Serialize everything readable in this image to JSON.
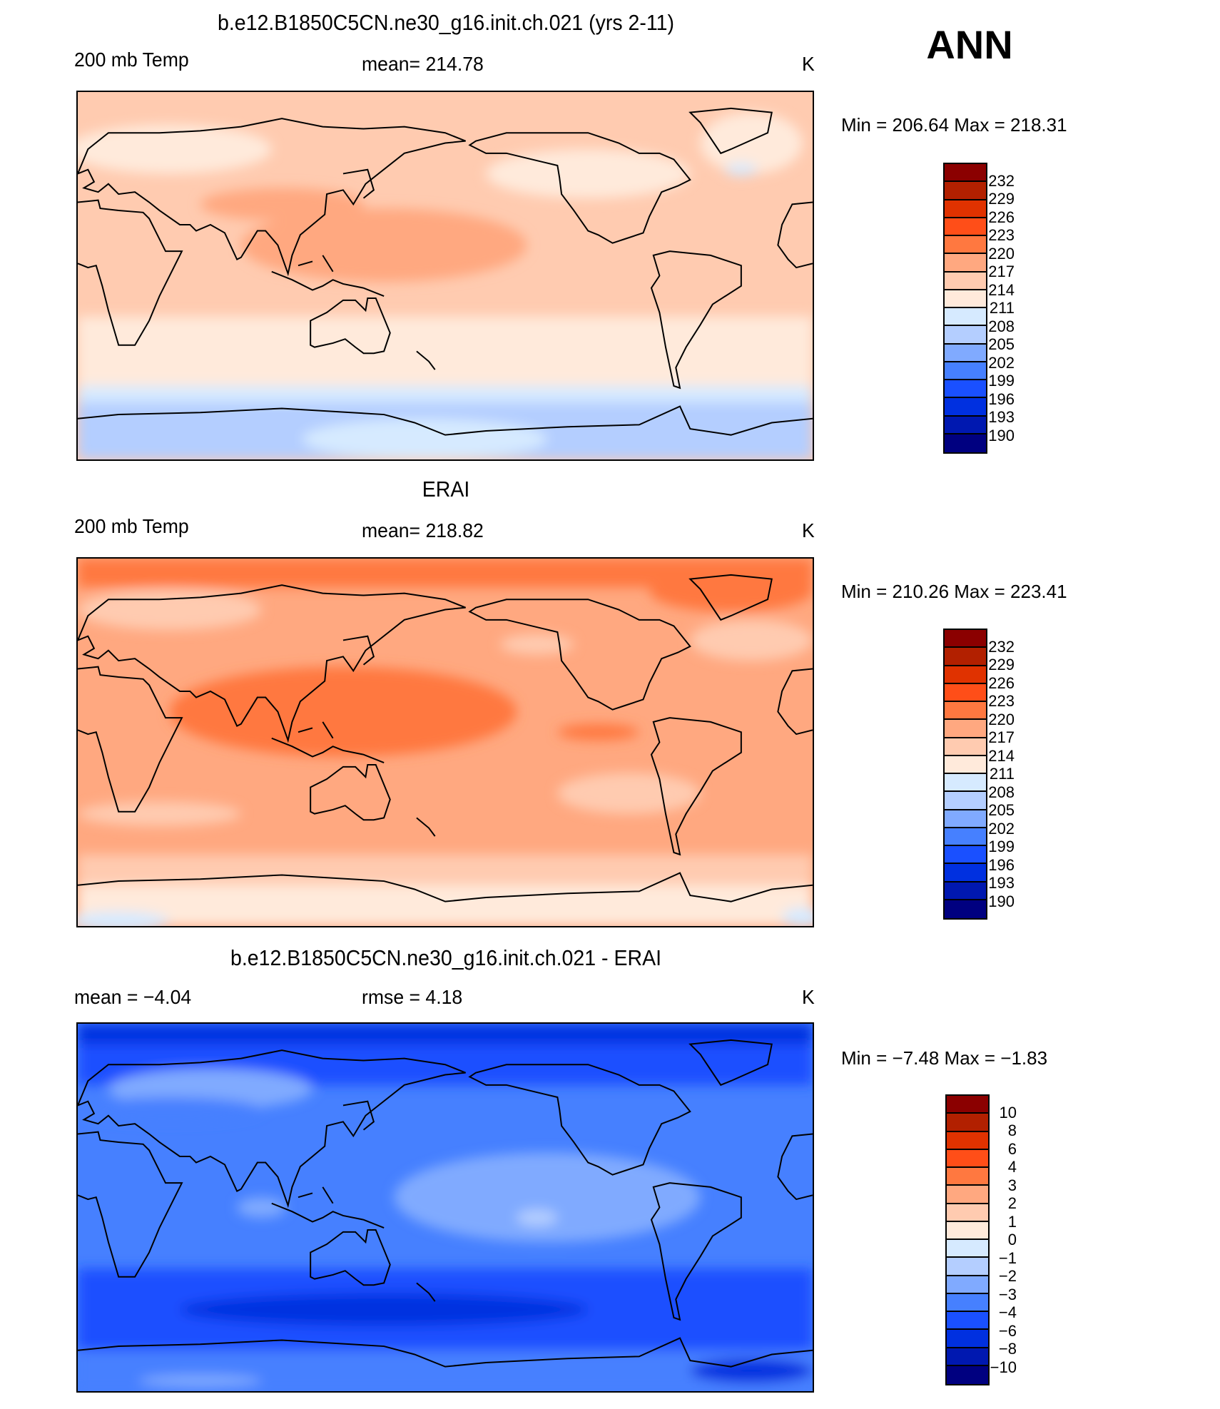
{
  "header": {
    "season": "ANN"
  },
  "colors": [
    "#8b0000",
    "#b22000",
    "#e03200",
    "#ff4e18",
    "#ff7840",
    "#ffa880",
    "#ffcbb0",
    "#ffeadb",
    "#d6eaff",
    "#b4ceff",
    "#80aaff",
    "#4680ff",
    "#1a50ff",
    "#0030e0",
    "#0018b0",
    "#000080"
  ],
  "panels": [
    {
      "title": "b.e12.B1850C5CN.ne30_g16.init.ch.021 (yrs 2-11)",
      "left": "200 mb Temp",
      "center": "mean=  214.78",
      "units": "K",
      "minmax": "Min  =  206.64  Max  =  218.31",
      "levels": [
        "232",
        "229",
        "226",
        "223",
        "220",
        "217",
        "214",
        "211",
        "208",
        "205",
        "202",
        "199",
        "196",
        "193",
        "190"
      ]
    },
    {
      "title": "ERAI",
      "left": "200 mb Temp",
      "center": "mean=  218.82",
      "units": "K",
      "minmax": "Min  =  210.26  Max  =  223.41",
      "levels": [
        "232",
        "229",
        "226",
        "223",
        "220",
        "217",
        "214",
        "211",
        "208",
        "205",
        "202",
        "199",
        "196",
        "193",
        "190"
      ]
    },
    {
      "title": "b.e12.B1850C5CN.ne30_g16.init.ch.021 - ERAI",
      "left": "mean  =    −4.04",
      "center": "rmse  =     4.18",
      "units": "K",
      "minmax": "Min  =    −7.48  Max  =    −1.83",
      "levels": [
        "10",
        "8",
        "6",
        "4",
        "3",
        "2",
        "1",
        "0",
        "−1",
        "−2",
        "−3",
        "−4",
        "−6",
        "−8",
        "−10"
      ]
    }
  ],
  "chart_data": [
    {
      "type": "heatmap",
      "title": "b.e12.B1850C5CN.ne30_g16.init.ch.021 (yrs 2-11)",
      "variable": "200 mb Temp",
      "units": "K",
      "mean": 214.78,
      "min": 206.64,
      "max": 218.31,
      "contour_levels": [
        190,
        193,
        196,
        199,
        202,
        205,
        208,
        211,
        214,
        217,
        220,
        223,
        226,
        229,
        232
      ],
      "xlim": [
        0,
        360
      ],
      "ylim": [
        -90,
        90
      ]
    },
    {
      "type": "heatmap",
      "title": "ERAI",
      "variable": "200 mb Temp",
      "units": "K",
      "mean": 218.82,
      "min": 210.26,
      "max": 223.41,
      "contour_levels": [
        190,
        193,
        196,
        199,
        202,
        205,
        208,
        211,
        214,
        217,
        220,
        223,
        226,
        229,
        232
      ],
      "xlim": [
        0,
        360
      ],
      "ylim": [
        -90,
        90
      ]
    },
    {
      "type": "heatmap",
      "title": "b.e12.B1850C5CN.ne30_g16.init.ch.021 - ERAI",
      "units": "K",
      "mean": -4.04,
      "rmse": 4.18,
      "min": -7.48,
      "max": -1.83,
      "contour_levels": [
        -10,
        -8,
        -6,
        -4,
        -3,
        -2,
        -1,
        0,
        1,
        2,
        3,
        4,
        6,
        8,
        10
      ],
      "xlim": [
        0,
        360
      ],
      "ylim": [
        -90,
        90
      ]
    }
  ]
}
